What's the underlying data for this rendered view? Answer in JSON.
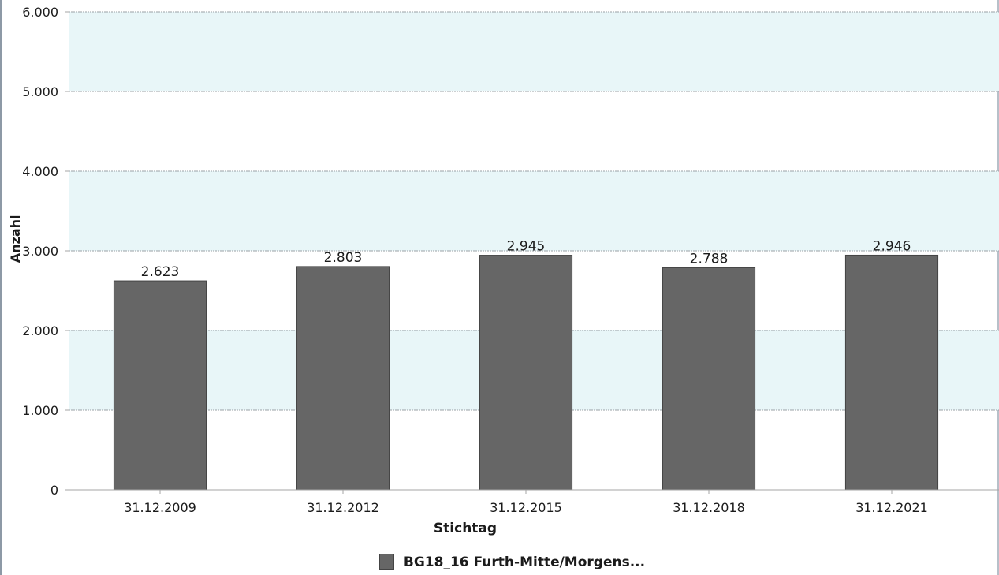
{
  "colors": {
    "bar": "#666666",
    "bar_border": "#444444",
    "band": "#e8f6f8",
    "grid": "#9aa0a6",
    "axis": "#a5a5a5",
    "text": "#1b1b1b"
  },
  "chart_data": {
    "type": "bar",
    "title": "",
    "xlabel": "Stichtag",
    "ylabel": "Anzahl",
    "categories": [
      "31.12.2009",
      "31.12.2012",
      "31.12.2015",
      "31.12.2018",
      "31.12.2021"
    ],
    "series": [
      {
        "name": "BG18_16 Furth-Mitte/Morgens...",
        "values": [
          2623,
          2803,
          2945,
          2788,
          2946
        ],
        "labels": [
          "2.623",
          "2.803",
          "2.945",
          "2.788",
          "2.946"
        ]
      }
    ],
    "ylim": [
      0,
      6000
    ],
    "yticks": [
      0,
      1000,
      2000,
      3000,
      4000,
      5000,
      6000
    ],
    "ytick_labels": [
      "0",
      "1.000",
      "2.000",
      "3.000",
      "4.000",
      "5.000",
      "6.000"
    ],
    "grid": true,
    "legend_position": "bottom"
  }
}
